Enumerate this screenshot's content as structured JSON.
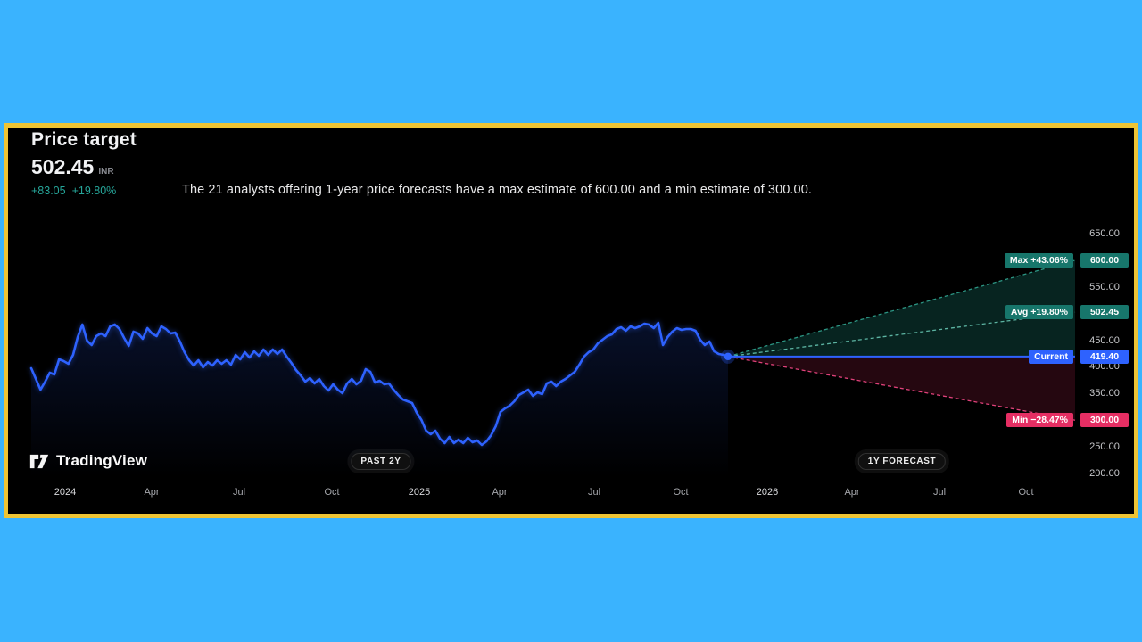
{
  "colors": {
    "page_bg": "#3ab3fe",
    "frame": "#eec435",
    "panel_bg": "#000000",
    "line_blue": "#2e62fe",
    "change_green": "#26a69a",
    "teal_badge": "#17766b",
    "teal_line": "#2c9583",
    "teal_line_light": "#5cb4a2",
    "teal_fill": "rgba(23,118,107,0.30)",
    "pink_badge": "#e52e63",
    "pink_line": "#e0417a",
    "pink_fill": "rgba(229,46,99,0.16)",
    "area_fill_top": "rgba(46,98,254,0.16)",
    "area_fill_bottom": "rgba(46,98,254,0)"
  },
  "header": {
    "title": "Price target",
    "price": "502.45",
    "currency": "INR",
    "change_abs": "+83.05",
    "change_pct": "+19.80%",
    "description": "The 21 analysts offering 1-year price forecasts have a max estimate of 600.00 and a min estimate of 300.00."
  },
  "badges": {
    "past": "PAST 2Y",
    "forecast": "1Y FORECAST"
  },
  "logo": {
    "text": "TradingView"
  },
  "chart_data": {
    "type": "line",
    "title": "Price target",
    "currency": "INR",
    "analysts_count": 21,
    "current": {
      "label": "Current",
      "value": "419.40",
      "price": 419.4
    },
    "targets": [
      {
        "name": "max",
        "label": "Max +43.06%",
        "value": "600.00",
        "price": 600,
        "color": "teal"
      },
      {
        "name": "avg",
        "label": "Avg +19.80%",
        "value": "502.45",
        "price": 502.45,
        "color": "teal"
      },
      {
        "name": "min",
        "label": "Min −28.47%",
        "value": "300.00",
        "price": 300,
        "color": "pink"
      }
    ],
    "y_ticks": [
      {
        "label": "650.00",
        "price": 650
      },
      {
        "label": "550.00",
        "price": 550
      },
      {
        "label": "450.00",
        "price": 450
      },
      {
        "label": "400.00",
        "price": 400
      },
      {
        "label": "350.00",
        "price": 350
      },
      {
        "label": "250.00",
        "price": 250
      },
      {
        "label": "200.00",
        "price": 200
      }
    ],
    "x_ticks": [
      "2024",
      "Apr",
      "Jul",
      "Oct",
      "2025",
      "Apr",
      "Jul",
      "Oct",
      "2026",
      "Apr",
      "Jul",
      "Oct"
    ],
    "ylim": [
      200,
      650
    ],
    "history": {
      "span_label": "PAST 2Y",
      "prices": [
        397.4,
        377.3,
        357.2,
        372.3,
        389.0,
        385.7,
        414.1,
        410.8,
        405.8,
        422.5,
        455.9,
        479.4,
        449.3,
        440.9,
        457.6,
        462.6,
        457.6,
        476.0,
        479.4,
        471.0,
        454.3,
        439.2,
        466.0,
        462.6,
        452.6,
        472.7,
        462.6,
        457.6,
        476.0,
        471.0,
        462.6,
        464.3,
        447.6,
        427.5,
        412.4,
        402.4,
        412.4,
        399.1,
        409.1,
        402.4,
        412.4,
        405.8,
        412.4,
        404.1,
        422.5,
        414.1,
        427.5,
        417.5,
        429.2,
        420.8,
        432.5,
        422.5,
        432.5,
        424.1,
        432.5,
        419.1,
        407.4,
        394.1,
        384.0,
        372.3,
        379.0,
        369.0,
        377.3,
        363.9,
        355.6,
        367.3,
        357.2,
        350.6,
        369.0,
        377.3,
        367.3,
        374.0,
        395.7,
        390.7,
        370.6,
        374.0,
        367.3,
        369.0,
        357.2,
        347.2,
        338.9,
        335.5,
        332.2,
        313.8,
        300.4,
        280.3,
        273.6,
        280.3,
        265.3,
        256.9,
        268.6,
        256.9,
        263.6,
        256.9,
        266.9,
        258.6,
        261.9,
        253.6,
        260.3,
        272.0,
        288.6,
        315.4,
        322.1,
        327.1,
        335.5,
        347.2,
        352.2,
        357.2,
        345.5,
        352.2,
        348.9,
        369.0,
        372.3,
        363.9,
        372.3,
        377.3,
        384.0,
        390.7,
        404.1,
        419.1,
        427.5,
        432.5,
        444.2,
        450.9,
        457.6,
        460.9,
        471.0,
        474.3,
        467.7,
        476.0,
        472.7,
        476.0,
        481.1,
        479.4,
        472.7,
        482.7,
        440.9,
        455.9,
        466.0,
        472.7,
        469.3,
        471.0,
        471.0,
        467.7,
        450.9,
        440.9,
        447.6,
        429.2,
        424.1,
        422.5,
        419.4
      ]
    }
  }
}
